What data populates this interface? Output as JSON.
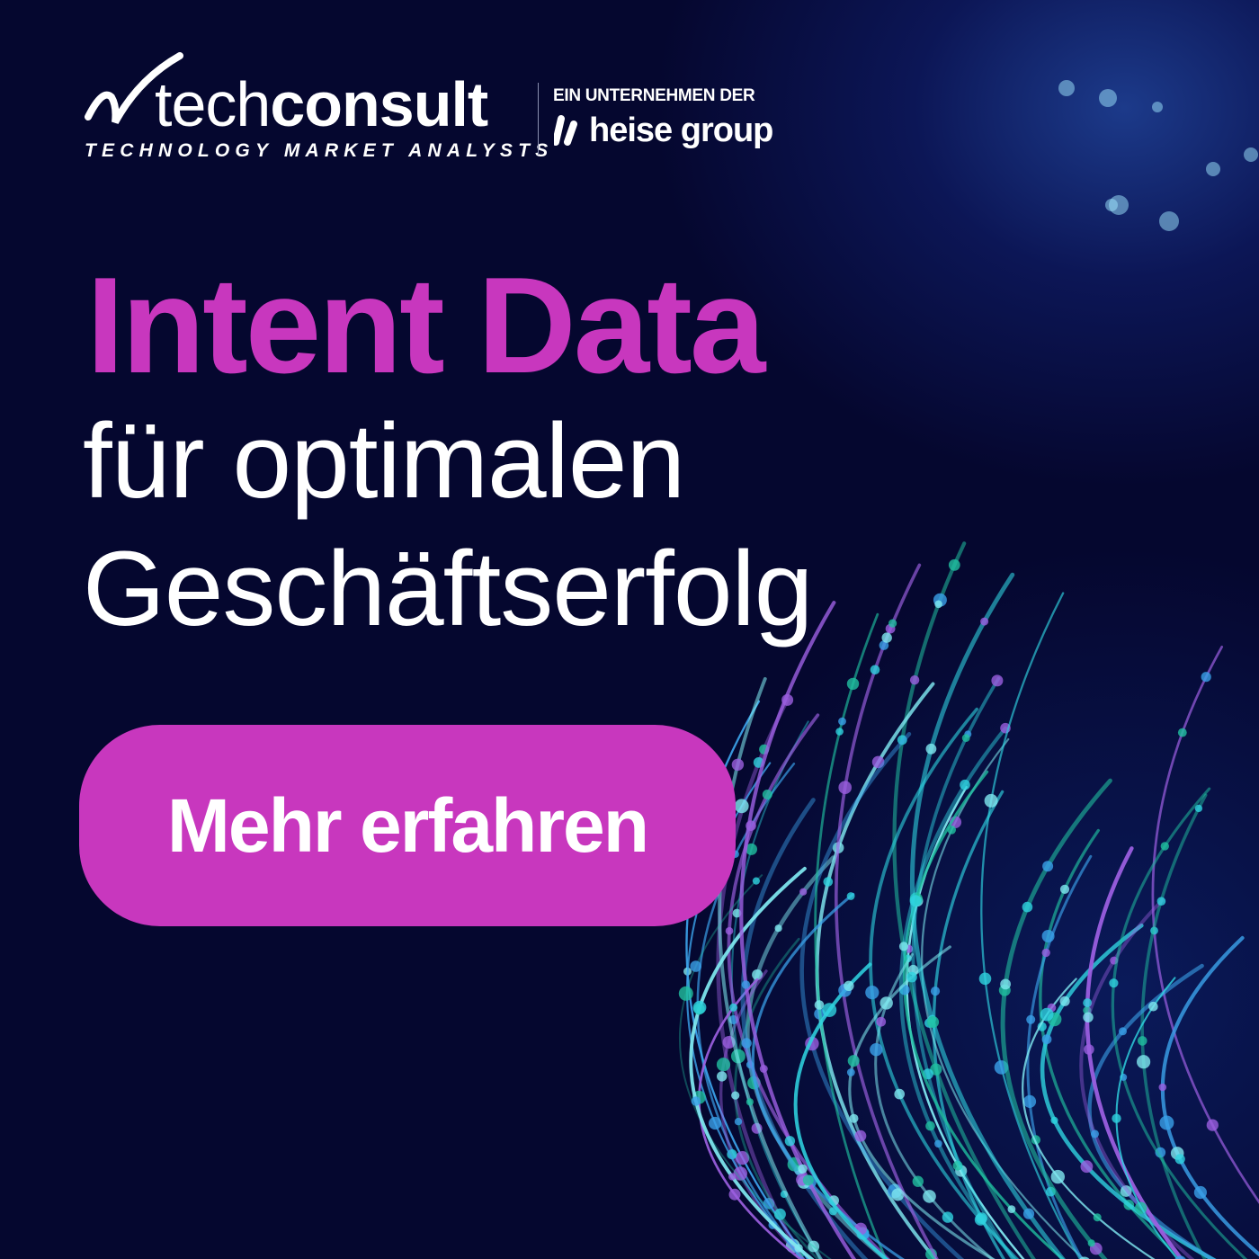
{
  "logo": {
    "brand_light": "tech",
    "brand_bold": "consult",
    "tagline": "TECHNOLOGY MARKET ANALYSTS",
    "parent_label": "EIN UNTERNEHMEN DER",
    "parent_name": "heise group"
  },
  "headline": {
    "line1": "Intent Data",
    "line2": "für optimalen",
    "line3": "Geschäftserfolg"
  },
  "cta": {
    "label": "Mehr erfahren"
  },
  "colors": {
    "accent": "#c837be",
    "background": "#05072f",
    "strands": [
      "#2fd3e0",
      "#3aa0e8",
      "#7fe8f0",
      "#9b5fe0",
      "#20c0a0"
    ]
  }
}
